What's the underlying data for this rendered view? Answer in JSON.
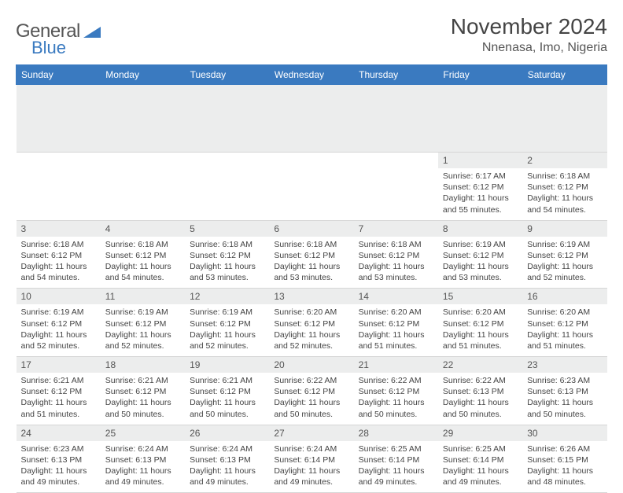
{
  "brand": {
    "name_a": "General",
    "name_b": "Blue"
  },
  "title": "November 2024",
  "location": "Nnenasa, Imo, Nigeria",
  "colors": {
    "header_bg": "#3a7ac0",
    "header_text": "#ffffff",
    "daynum_bg": "#eceded",
    "text": "#444444",
    "border": "#d6d6d6"
  },
  "weekdays": [
    "Sunday",
    "Monday",
    "Tuesday",
    "Wednesday",
    "Thursday",
    "Friday",
    "Saturday"
  ],
  "weeks": [
    [
      null,
      null,
      null,
      null,
      null,
      {
        "n": "1",
        "sunrise": "6:17 AM",
        "sunset": "6:12 PM",
        "daylight": "11 hours and 55 minutes."
      },
      {
        "n": "2",
        "sunrise": "6:18 AM",
        "sunset": "6:12 PM",
        "daylight": "11 hours and 54 minutes."
      }
    ],
    [
      {
        "n": "3",
        "sunrise": "6:18 AM",
        "sunset": "6:12 PM",
        "daylight": "11 hours and 54 minutes."
      },
      {
        "n": "4",
        "sunrise": "6:18 AM",
        "sunset": "6:12 PM",
        "daylight": "11 hours and 54 minutes."
      },
      {
        "n": "5",
        "sunrise": "6:18 AM",
        "sunset": "6:12 PM",
        "daylight": "11 hours and 53 minutes."
      },
      {
        "n": "6",
        "sunrise": "6:18 AM",
        "sunset": "6:12 PM",
        "daylight": "11 hours and 53 minutes."
      },
      {
        "n": "7",
        "sunrise": "6:18 AM",
        "sunset": "6:12 PM",
        "daylight": "11 hours and 53 minutes."
      },
      {
        "n": "8",
        "sunrise": "6:19 AM",
        "sunset": "6:12 PM",
        "daylight": "11 hours and 53 minutes."
      },
      {
        "n": "9",
        "sunrise": "6:19 AM",
        "sunset": "6:12 PM",
        "daylight": "11 hours and 52 minutes."
      }
    ],
    [
      {
        "n": "10",
        "sunrise": "6:19 AM",
        "sunset": "6:12 PM",
        "daylight": "11 hours and 52 minutes."
      },
      {
        "n": "11",
        "sunrise": "6:19 AM",
        "sunset": "6:12 PM",
        "daylight": "11 hours and 52 minutes."
      },
      {
        "n": "12",
        "sunrise": "6:19 AM",
        "sunset": "6:12 PM",
        "daylight": "11 hours and 52 minutes."
      },
      {
        "n": "13",
        "sunrise": "6:20 AM",
        "sunset": "6:12 PM",
        "daylight": "11 hours and 52 minutes."
      },
      {
        "n": "14",
        "sunrise": "6:20 AM",
        "sunset": "6:12 PM",
        "daylight": "11 hours and 51 minutes."
      },
      {
        "n": "15",
        "sunrise": "6:20 AM",
        "sunset": "6:12 PM",
        "daylight": "11 hours and 51 minutes."
      },
      {
        "n": "16",
        "sunrise": "6:20 AM",
        "sunset": "6:12 PM",
        "daylight": "11 hours and 51 minutes."
      }
    ],
    [
      {
        "n": "17",
        "sunrise": "6:21 AM",
        "sunset": "6:12 PM",
        "daylight": "11 hours and 51 minutes."
      },
      {
        "n": "18",
        "sunrise": "6:21 AM",
        "sunset": "6:12 PM",
        "daylight": "11 hours and 50 minutes."
      },
      {
        "n": "19",
        "sunrise": "6:21 AM",
        "sunset": "6:12 PM",
        "daylight": "11 hours and 50 minutes."
      },
      {
        "n": "20",
        "sunrise": "6:22 AM",
        "sunset": "6:12 PM",
        "daylight": "11 hours and 50 minutes."
      },
      {
        "n": "21",
        "sunrise": "6:22 AM",
        "sunset": "6:12 PM",
        "daylight": "11 hours and 50 minutes."
      },
      {
        "n": "22",
        "sunrise": "6:22 AM",
        "sunset": "6:13 PM",
        "daylight": "11 hours and 50 minutes."
      },
      {
        "n": "23",
        "sunrise": "6:23 AM",
        "sunset": "6:13 PM",
        "daylight": "11 hours and 50 minutes."
      }
    ],
    [
      {
        "n": "24",
        "sunrise": "6:23 AM",
        "sunset": "6:13 PM",
        "daylight": "11 hours and 49 minutes."
      },
      {
        "n": "25",
        "sunrise": "6:24 AM",
        "sunset": "6:13 PM",
        "daylight": "11 hours and 49 minutes."
      },
      {
        "n": "26",
        "sunrise": "6:24 AM",
        "sunset": "6:13 PM",
        "daylight": "11 hours and 49 minutes."
      },
      {
        "n": "27",
        "sunrise": "6:24 AM",
        "sunset": "6:14 PM",
        "daylight": "11 hours and 49 minutes."
      },
      {
        "n": "28",
        "sunrise": "6:25 AM",
        "sunset": "6:14 PM",
        "daylight": "11 hours and 49 minutes."
      },
      {
        "n": "29",
        "sunrise": "6:25 AM",
        "sunset": "6:14 PM",
        "daylight": "11 hours and 49 minutes."
      },
      {
        "n": "30",
        "sunrise": "6:26 AM",
        "sunset": "6:15 PM",
        "daylight": "11 hours and 48 minutes."
      }
    ]
  ],
  "labels": {
    "sunrise": "Sunrise: ",
    "sunset": "Sunset: ",
    "daylight": "Daylight: "
  }
}
